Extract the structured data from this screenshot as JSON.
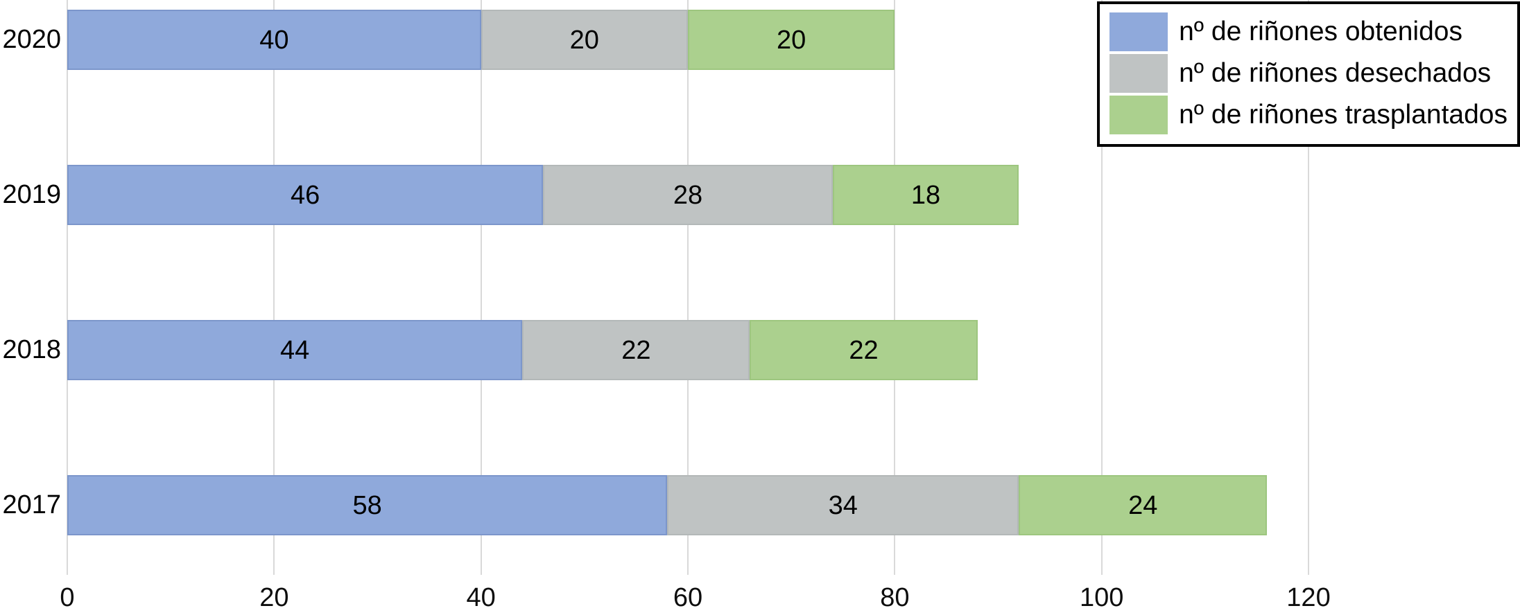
{
  "chart_data": {
    "type": "bar",
    "orientation": "horizontal",
    "stacked": true,
    "title": "",
    "categories": [
      "2020",
      "2019",
      "2018",
      "2017"
    ],
    "series": [
      {
        "name": "nº de riñones obtenidos",
        "color": "#8FA9DB",
        "border_color": "#7C96CB",
        "values": [
          40,
          46,
          44,
          58
        ]
      },
      {
        "name": "nº de riñones desechados",
        "color": "#BFC3C3",
        "border_color": "#B3B8B8",
        "values": [
          20,
          28,
          22,
          34
        ]
      },
      {
        "name": "nº de riñones trasplantados",
        "color": "#ABD08E",
        "border_color": "#9DC67F",
        "values": [
          20,
          18,
          22,
          24
        ]
      }
    ],
    "totals": [
      80,
      92,
      88,
      116
    ],
    "x_ticks": [
      "0",
      "20",
      "40",
      "60",
      "80",
      "100",
      "120"
    ],
    "xlim": [
      0,
      120
    ],
    "grid": true,
    "grid_color": "#D9D9D9",
    "data_labels": true,
    "legend_position": "top-right",
    "background": "#FFFFFF",
    "text_color": "#000000"
  }
}
